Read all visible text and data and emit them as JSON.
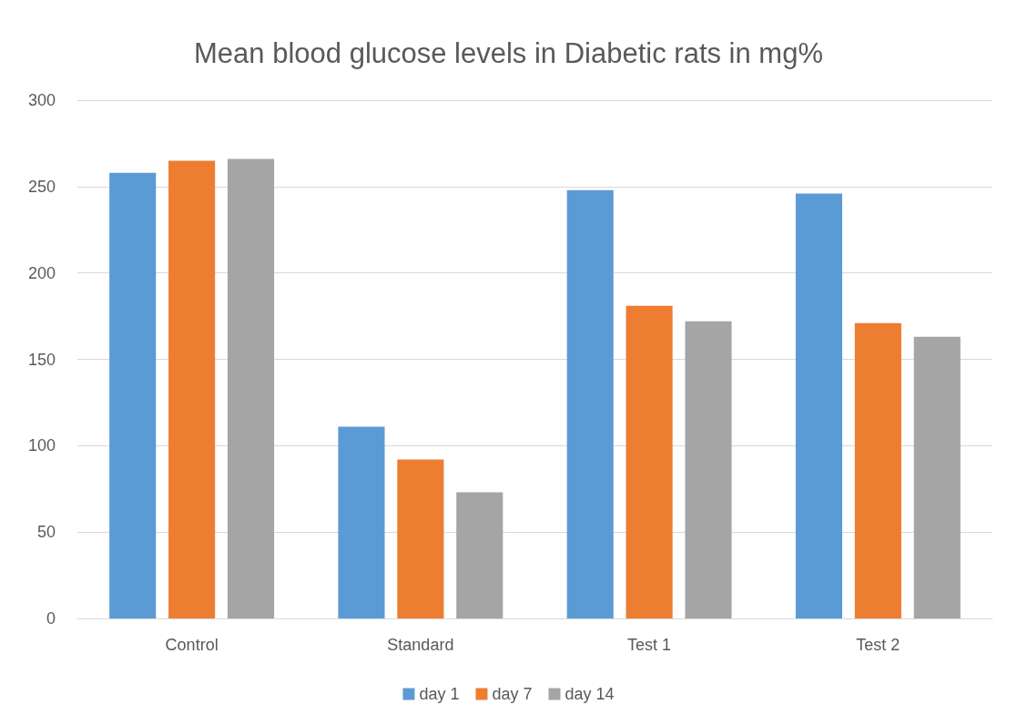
{
  "chart_data": {
    "type": "bar",
    "title": "Mean blood glucose levels in Diabetic rats in mg%",
    "categories": [
      "Control",
      "Standard",
      "Test 1",
      "Test 2"
    ],
    "series": [
      {
        "name": "day 1",
        "color": "#5b9bd5",
        "values": [
          258,
          111,
          248,
          246
        ]
      },
      {
        "name": "day 7",
        "color": "#ed7d31",
        "values": [
          265,
          92,
          181,
          171
        ]
      },
      {
        "name": "day 14",
        "color": "#a5a5a5",
        "values": [
          266,
          73,
          172,
          163
        ]
      }
    ],
    "ylim": [
      0,
      300
    ],
    "yticks": [
      0,
      50,
      100,
      150,
      200,
      250,
      300
    ],
    "grid": "y",
    "legend": "bottom"
  }
}
